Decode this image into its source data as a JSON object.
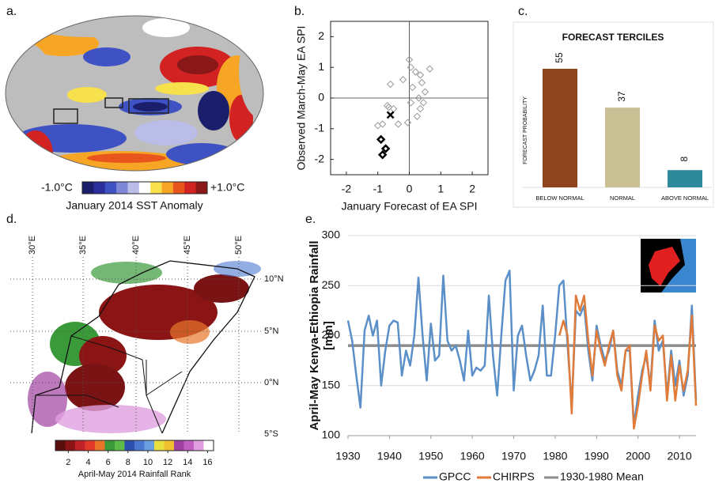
{
  "chart_data": [
    {
      "type": "map",
      "panel_label": "a.",
      "colorbar_labels": [
        "-1.0°C",
        "+1.0°C"
      ],
      "colorbar_title": "January 2014 SST Anomaly",
      "colorbar_colors": [
        "#1b1f6b",
        "#2a2f9c",
        "#3f52c4",
        "#7d88d6",
        "#b9bde8",
        "#ffffff",
        "#f6e04b",
        "#f6a524",
        "#e9561d",
        "#d22222",
        "#8a1818"
      ]
    },
    {
      "type": "scatter",
      "panel_label": "b.",
      "xlabel": "January Forecast of EA SPI",
      "ylabel": "Observed March-May EA SPI",
      "xlim": [
        -2.5,
        2.5
      ],
      "ylim": [
        -2.5,
        2.5
      ],
      "xticks": [
        -2,
        -1,
        0,
        1,
        2
      ],
      "yticks": [
        -2,
        -1,
        0,
        1,
        2
      ],
      "zero_lines": true,
      "series": [
        {
          "marker": "diamond",
          "color": "#999999",
          "stroke_width": 1,
          "x": [
            0.0,
            0.05,
            0.2,
            0.35,
            0.65,
            -0.2,
            0.4,
            -0.6,
            0.1,
            0.5,
            0.3,
            0.05,
            0.45,
            -0.7,
            -0.65,
            0.35,
            -0.5,
            0.25,
            -1.0,
            -0.35,
            -0.05,
            -0.85
          ],
          "values": [
            1.25,
            1.0,
            0.85,
            0.75,
            0.95,
            0.6,
            0.5,
            0.45,
            0.35,
            0.2,
            0.0,
            -0.15,
            -0.15,
            -0.25,
            -0.3,
            -0.35,
            -0.35,
            -0.6,
            -0.9,
            -0.85,
            -0.8,
            -0.85
          ]
        },
        {
          "marker": "diamond",
          "color": "#000000",
          "stroke_width": 2.5,
          "x": [
            -0.9,
            -0.75,
            -0.85
          ],
          "values": [
            -1.35,
            -1.65,
            -1.85
          ]
        },
        {
          "marker": "cross",
          "color": "#000000",
          "stroke_width": 2.5,
          "x": [
            -0.6
          ],
          "values": [
            -0.55
          ]
        }
      ]
    },
    {
      "type": "bar",
      "panel_label": "c.",
      "title": "FORECAST TERCILES",
      "ylabel": "FORECAST PROBABILITY",
      "categories": [
        "BELOW NORMAL",
        "NORMAL",
        "ABOVE NORMAL"
      ],
      "values": [
        55,
        37,
        8
      ],
      "colors": [
        "#8f4420",
        "#c9bf95",
        "#2e8a9a"
      ]
    },
    {
      "type": "map",
      "panel_label": "d.",
      "lon_labels": [
        "30°E",
        "35°E",
        "40°E",
        "45°E",
        "50°E"
      ],
      "lat_labels": [
        "10°N",
        "5°N",
        "0°N",
        "5°S"
      ],
      "colorbar_title": "April-May 2014 Rainfall Rank",
      "colorbar_lim": [
        0.7,
        16.6
      ],
      "colorbar_ticks": [
        2,
        4,
        6,
        8,
        10,
        12,
        14,
        16
      ],
      "colorbar_colors": [
        "#5a0f0f",
        "#8b1515",
        "#c0222a",
        "#e23a2a",
        "#e8762a",
        "#3a9a3a",
        "#5dbb4a",
        "#2d4fb0",
        "#4a78d0",
        "#6aa0e0",
        "#e8e040",
        "#f0c030",
        "#a040a0",
        "#c060c0",
        "#e0a0e0",
        "#ffffff"
      ]
    },
    {
      "type": "line",
      "panel_label": "e.",
      "ylabel": [
        "April-May Kenya-Ethiopia Rainfall",
        "[mm]"
      ],
      "xlim": [
        1930,
        2014
      ],
      "ylim": [
        100,
        300
      ],
      "xticks": [
        1930,
        1940,
        1950,
        1960,
        1970,
        1980,
        1990,
        2000,
        2010
      ],
      "yticks": [
        100,
        150,
        200,
        250,
        300
      ],
      "grid": true,
      "x": [
        1930,
        1931,
        1932,
        1933,
        1934,
        1935,
        1936,
        1937,
        1938,
        1939,
        1940,
        1941,
        1942,
        1943,
        1944,
        1945,
        1946,
        1947,
        1948,
        1949,
        1950,
        1951,
        1952,
        1953,
        1954,
        1955,
        1956,
        1957,
        1958,
        1959,
        1960,
        1961,
        1962,
        1963,
        1964,
        1965,
        1966,
        1967,
        1968,
        1969,
        1970,
        1971,
        1972,
        1973,
        1974,
        1975,
        1976,
        1977,
        1978,
        1979,
        1980,
        1981,
        1982,
        1983,
        1984,
        1985,
        1986,
        1987,
        1988,
        1989,
        1990,
        1991,
        1992,
        1993,
        1994,
        1995,
        1996,
        1997,
        1998,
        1999,
        2000,
        2001,
        2002,
        2003,
        2004,
        2005,
        2006,
        2007,
        2008,
        2009,
        2010,
        2011,
        2012,
        2013,
        2014
      ],
      "series": [
        {
          "name": "GPCC",
          "color": "#5b8fc7",
          "values": [
            215,
            195,
            160,
            128,
            205,
            220,
            200,
            215,
            150,
            185,
            210,
            215,
            213,
            160,
            185,
            170,
            200,
            258,
            200,
            155,
            212,
            175,
            180,
            260,
            195,
            185,
            190,
            175,
            155,
            205,
            160,
            168,
            165,
            170,
            240,
            180,
            140,
            200,
            255,
            265,
            145,
            200,
            210,
            180,
            155,
            165,
            180,
            230,
            160,
            160,
            200,
            250,
            255,
            190,
            130,
            225,
            220,
            230,
            185,
            155,
            210,
            190,
            175,
            185,
            205,
            165,
            150,
            185,
            185,
            110,
            140,
            165,
            180,
            150,
            215,
            185,
            195,
            140,
            185,
            150,
            175,
            140,
            160,
            230,
            135
          ]
        },
        {
          "name": "CHIRPS",
          "color": "#e07b39",
          "x": [
            1981,
            1982,
            1983,
            1984,
            1985,
            1986,
            1987,
            1988,
            1989,
            1990,
            1991,
            1992,
            1993,
            1994,
            1995,
            1996,
            1997,
            1998,
            1999,
            2000,
            2001,
            2002,
            2003,
            2004,
            2005,
            2006,
            2007,
            2008,
            2009,
            2010,
            2011,
            2012,
            2013,
            2014
          ],
          "values": [
            200,
            215,
            200,
            122,
            240,
            225,
            240,
            195,
            160,
            205,
            185,
            170,
            190,
            205,
            160,
            145,
            185,
            190,
            107,
            130,
            160,
            185,
            145,
            210,
            195,
            200,
            135,
            180,
            135,
            170,
            145,
            165,
            220,
            130
          ]
        },
        {
          "name": "1930-1980 Mean",
          "color": "#8c8c8c",
          "x": [
            1930,
            2014
          ],
          "values": [
            190,
            190
          ]
        }
      ]
    }
  ]
}
